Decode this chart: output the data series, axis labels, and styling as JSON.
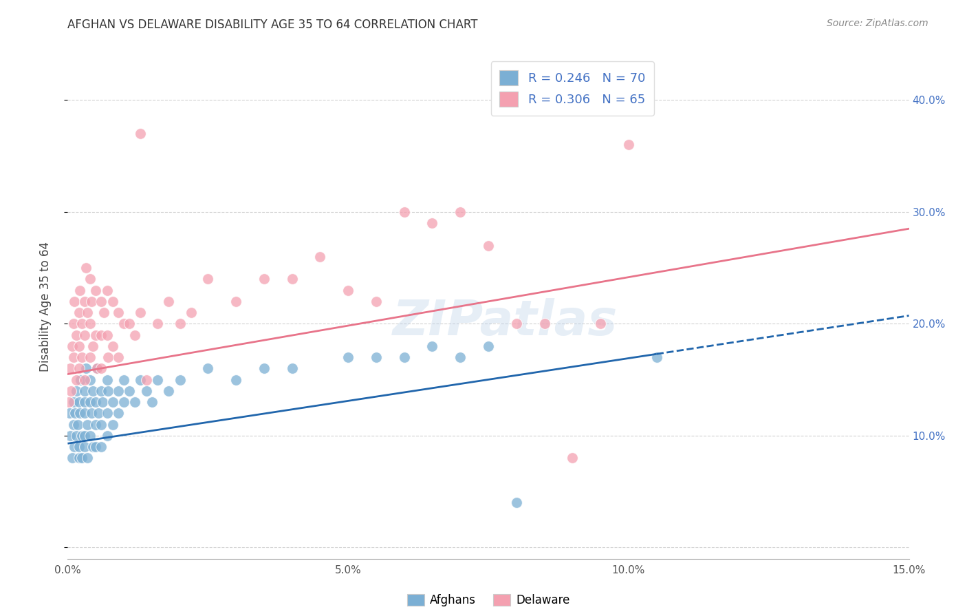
{
  "title": "AFGHAN VS DELAWARE DISABILITY AGE 35 TO 64 CORRELATION CHART",
  "source": "Source: ZipAtlas.com",
  "ylabel": "Disability Age 35 to 64",
  "xlim": [
    0.0,
    0.15
  ],
  "ylim": [
    -0.01,
    0.44
  ],
  "legend_r_afghan": "0.246",
  "legend_n_afghan": "70",
  "legend_r_delaware": "0.306",
  "legend_n_delaware": "65",
  "afghan_color": "#7bafd4",
  "delaware_color": "#f4a0b0",
  "afghan_line_color": "#2166ac",
  "delaware_line_color": "#e8748a",
  "background_color": "#ffffff",
  "afghan_x": [
    0.0003,
    0.0005,
    0.0008,
    0.001,
    0.001,
    0.0012,
    0.0013,
    0.0015,
    0.0015,
    0.0018,
    0.002,
    0.002,
    0.002,
    0.0022,
    0.0023,
    0.0025,
    0.0025,
    0.003,
    0.003,
    0.003,
    0.003,
    0.003,
    0.0032,
    0.0035,
    0.0035,
    0.004,
    0.004,
    0.004,
    0.0042,
    0.0045,
    0.0045,
    0.005,
    0.005,
    0.005,
    0.0052,
    0.0055,
    0.006,
    0.006,
    0.006,
    0.0062,
    0.007,
    0.007,
    0.007,
    0.0072,
    0.008,
    0.008,
    0.009,
    0.009,
    0.01,
    0.01,
    0.011,
    0.012,
    0.013,
    0.014,
    0.015,
    0.016,
    0.018,
    0.02,
    0.025,
    0.03,
    0.035,
    0.04,
    0.05,
    0.055,
    0.06,
    0.065,
    0.07,
    0.075,
    0.08,
    0.105
  ],
  "afghan_y": [
    0.12,
    0.1,
    0.08,
    0.13,
    0.11,
    0.09,
    0.12,
    0.14,
    0.1,
    0.11,
    0.13,
    0.09,
    0.08,
    0.12,
    0.15,
    0.1,
    0.08,
    0.14,
    0.12,
    0.1,
    0.09,
    0.13,
    0.16,
    0.11,
    0.08,
    0.15,
    0.13,
    0.1,
    0.12,
    0.09,
    0.14,
    0.13,
    0.11,
    0.09,
    0.16,
    0.12,
    0.14,
    0.11,
    0.09,
    0.13,
    0.15,
    0.12,
    0.1,
    0.14,
    0.13,
    0.11,
    0.14,
    0.12,
    0.15,
    0.13,
    0.14,
    0.13,
    0.15,
    0.14,
    0.13,
    0.15,
    0.14,
    0.15,
    0.16,
    0.15,
    0.16,
    0.16,
    0.17,
    0.17,
    0.17,
    0.18,
    0.17,
    0.18,
    0.04,
    0.17
  ],
  "delaware_x": [
    0.0002,
    0.0004,
    0.0006,
    0.0008,
    0.001,
    0.001,
    0.0012,
    0.0015,
    0.0015,
    0.002,
    0.002,
    0.002,
    0.0022,
    0.0025,
    0.0025,
    0.003,
    0.003,
    0.003,
    0.0032,
    0.0035,
    0.004,
    0.004,
    0.004,
    0.0042,
    0.0045,
    0.005,
    0.005,
    0.0052,
    0.006,
    0.006,
    0.006,
    0.0065,
    0.007,
    0.007,
    0.0072,
    0.008,
    0.008,
    0.009,
    0.009,
    0.01,
    0.011,
    0.012,
    0.013,
    0.013,
    0.014,
    0.016,
    0.018,
    0.02,
    0.022,
    0.025,
    0.03,
    0.035,
    0.04,
    0.045,
    0.05,
    0.055,
    0.06,
    0.065,
    0.07,
    0.075,
    0.08,
    0.085,
    0.09,
    0.095,
    0.1
  ],
  "delaware_y": [
    0.13,
    0.16,
    0.14,
    0.18,
    0.2,
    0.17,
    0.22,
    0.19,
    0.15,
    0.21,
    0.18,
    0.16,
    0.23,
    0.2,
    0.17,
    0.22,
    0.19,
    0.15,
    0.25,
    0.21,
    0.24,
    0.2,
    0.17,
    0.22,
    0.18,
    0.23,
    0.19,
    0.16,
    0.22,
    0.19,
    0.16,
    0.21,
    0.23,
    0.19,
    0.17,
    0.22,
    0.18,
    0.21,
    0.17,
    0.2,
    0.2,
    0.19,
    0.21,
    0.37,
    0.15,
    0.2,
    0.22,
    0.2,
    0.21,
    0.24,
    0.22,
    0.24,
    0.24,
    0.26,
    0.23,
    0.22,
    0.3,
    0.29,
    0.3,
    0.27,
    0.2,
    0.2,
    0.08,
    0.2,
    0.36
  ],
  "afghan_line_x0": 0.0,
  "afghan_line_x1": 0.105,
  "afghan_line_y0": 0.093,
  "afghan_line_y1": 0.173,
  "afghan_line_solid_end": 0.105,
  "afghan_line_dashed_end": 0.15,
  "delaware_line_x0": 0.0,
  "delaware_line_x1": 0.15,
  "delaware_line_y0": 0.155,
  "delaware_line_y1": 0.285
}
